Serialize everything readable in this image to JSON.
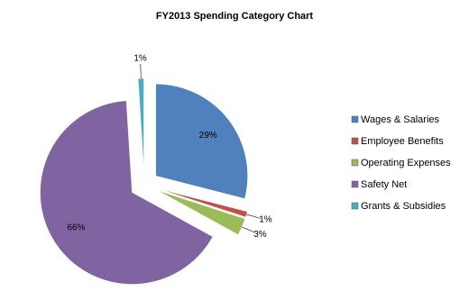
{
  "chart_data": {
    "type": "pie",
    "title": "FY2013 Spending Category Chart",
    "categories": [
      "Wages & Salaries",
      "Employee Benefits",
      "Operating Expenses",
      "Safety Net",
      "Grants & Subsidies"
    ],
    "values": [
      29,
      1,
      3,
      66,
      1
    ],
    "value_labels": [
      "29%",
      "1%",
      "3%",
      "66%",
      "1%"
    ],
    "colors": [
      "#4f81bd",
      "#c0504d",
      "#9bbb59",
      "#8064a2",
      "#4bacc6"
    ],
    "legend": "right"
  }
}
